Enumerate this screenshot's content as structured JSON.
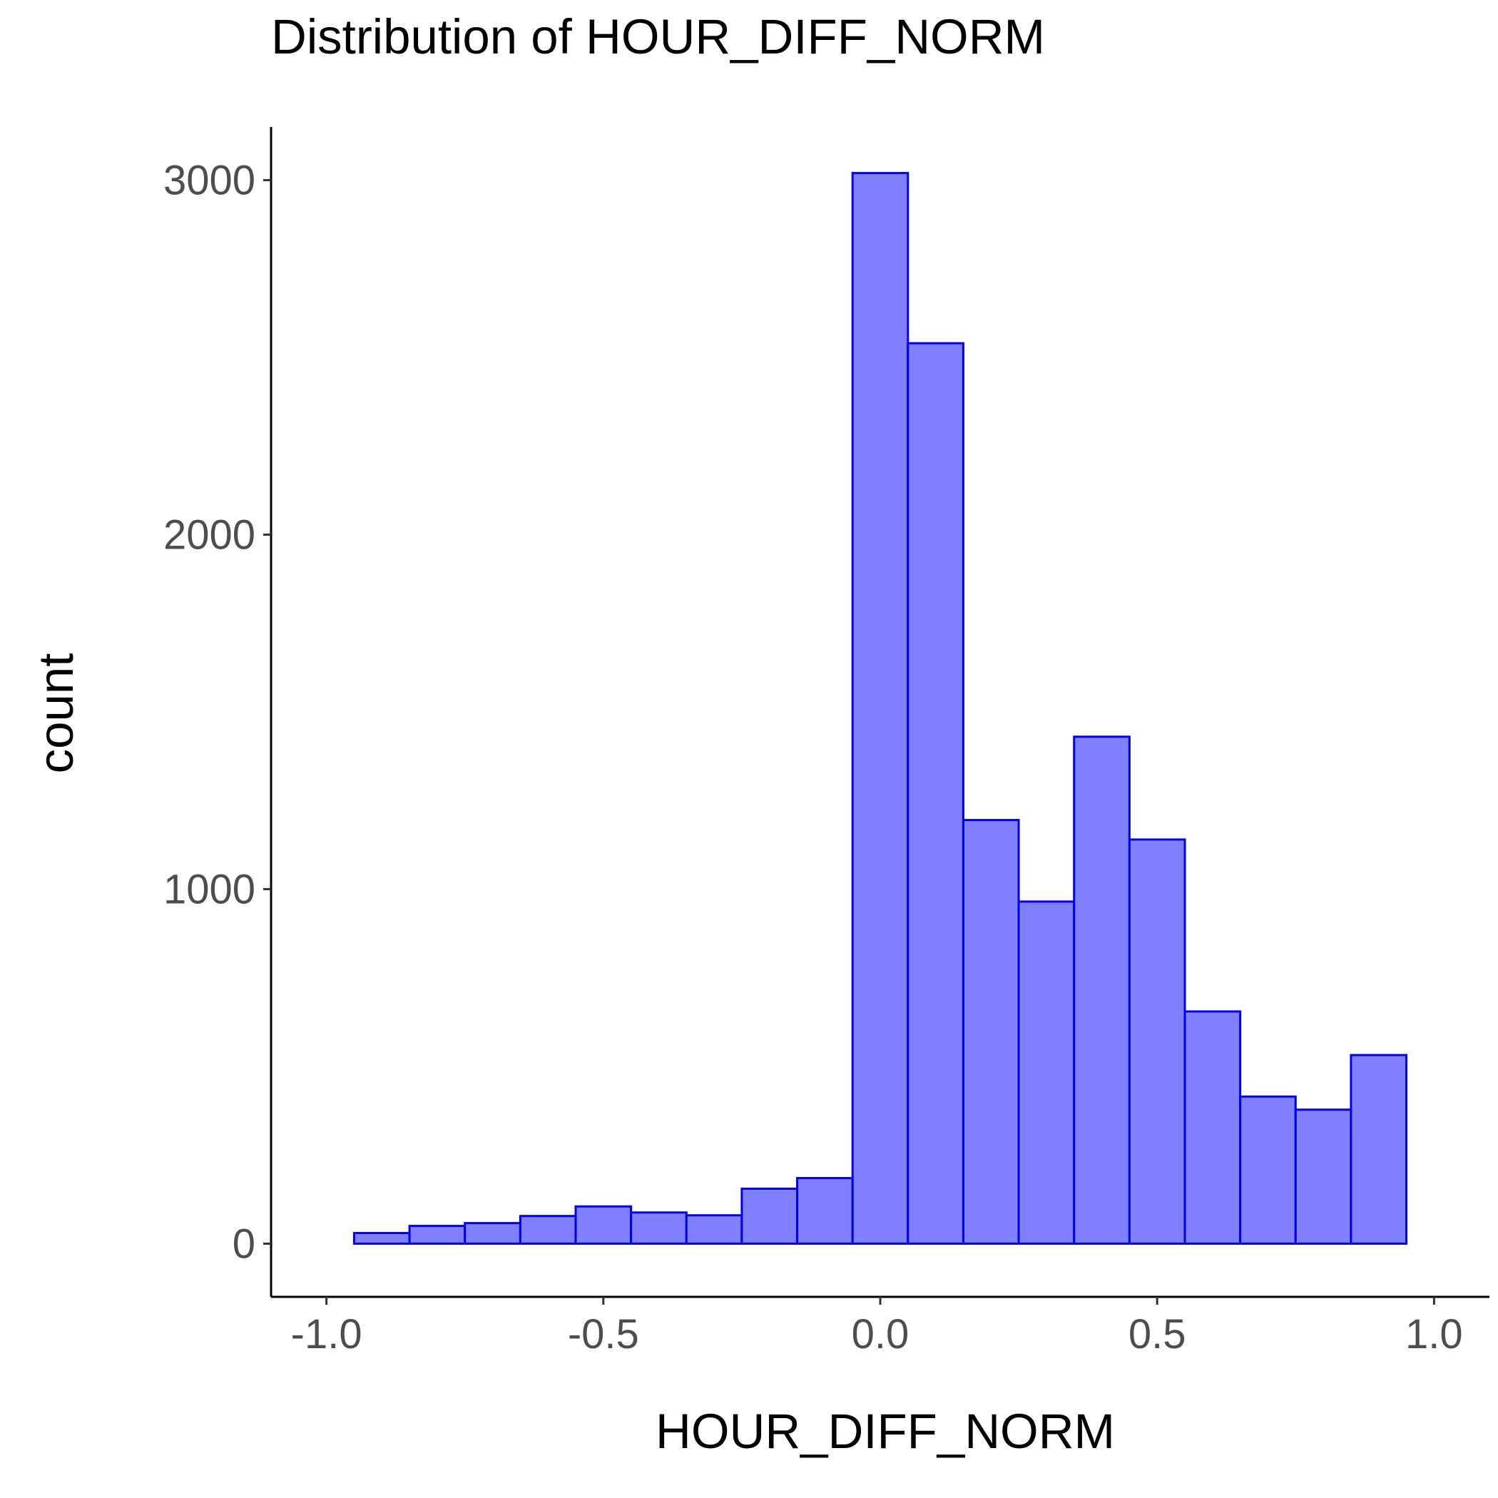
{
  "chart_data": {
    "type": "bar",
    "title": "Distribution of HOUR_DIFF_NORM",
    "xlabel": "HOUR_DIFF_NORM",
    "ylabel": "count",
    "xlim": [
      -1.1,
      1.1
    ],
    "ylim": [
      -150,
      3150
    ],
    "x_ticks": [
      -1.0,
      -0.5,
      0.0,
      0.5,
      1.0
    ],
    "x_tick_labels": [
      "-1.0",
      "-0.5",
      "0.0",
      "0.5",
      "1.0"
    ],
    "y_ticks": [
      0,
      1000,
      2000,
      3000
    ],
    "y_tick_labels": [
      "0",
      "1000",
      "2000",
      "3000"
    ],
    "bin_width": 0.1,
    "bins": [
      {
        "x0": -0.95,
        "x1": -0.85,
        "count": 30
      },
      {
        "x0": -0.85,
        "x1": -0.75,
        "count": 50
      },
      {
        "x0": -0.75,
        "x1": -0.65,
        "count": 58
      },
      {
        "x0": -0.65,
        "x1": -0.55,
        "count": 78
      },
      {
        "x0": -0.55,
        "x1": -0.45,
        "count": 105
      },
      {
        "x0": -0.45,
        "x1": -0.35,
        "count": 88
      },
      {
        "x0": -0.35,
        "x1": -0.25,
        "count": 80
      },
      {
        "x0": -0.25,
        "x1": -0.15,
        "count": 155
      },
      {
        "x0": -0.15,
        "x1": -0.05,
        "count": 185
      },
      {
        "x0": -0.05,
        "x1": 0.05,
        "count": 3020
      },
      {
        "x0": 0.05,
        "x1": 0.15,
        "count": 2540
      },
      {
        "x0": 0.15,
        "x1": 0.25,
        "count": 1195
      },
      {
        "x0": 0.25,
        "x1": 0.35,
        "count": 965
      },
      {
        "x0": 0.35,
        "x1": 0.45,
        "count": 1430
      },
      {
        "x0": 0.45,
        "x1": 0.55,
        "count": 1140
      },
      {
        "x0": 0.55,
        "x1": 0.65,
        "count": 655
      },
      {
        "x0": 0.65,
        "x1": 0.75,
        "count": 415
      },
      {
        "x0": 0.75,
        "x1": 0.85,
        "count": 378
      },
      {
        "x0": 0.85,
        "x1": 0.95,
        "count": 532
      }
    ],
    "fill_color": "#8080ff",
    "stroke_color": "#0000ee",
    "grid": false,
    "legend": "none"
  }
}
